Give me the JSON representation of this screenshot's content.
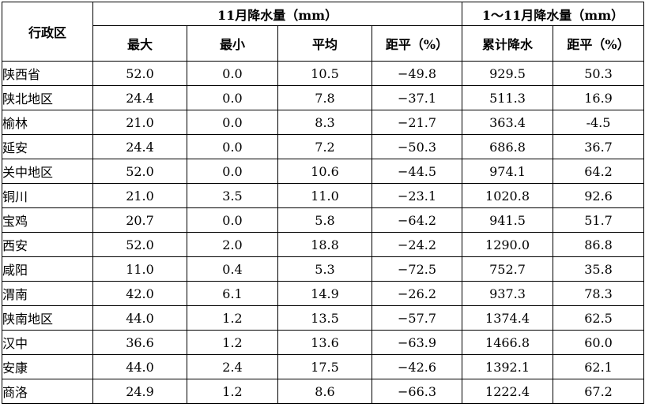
{
  "header": {
    "region_label": "行政区",
    "group_november": "11月降水量（mm）",
    "group_cumulative": "1～11月降水量（mm）",
    "columns": [
      "最大",
      "最小",
      "平均",
      "距平（%）",
      "累计降水",
      "距平（%）"
    ]
  },
  "rows": [
    {
      "region": "陕西省",
      "values": [
        "52.0",
        "0.0",
        "10.5",
        "−49.8",
        "929.5",
        "50.3"
      ]
    },
    {
      "region": "陕北地区",
      "values": [
        "24.4",
        "0.0",
        "7.8",
        "−37.1",
        "511.3",
        "16.9"
      ]
    },
    {
      "region": "榆林",
      "values": [
        "21.0",
        "0.0",
        "8.3",
        "−21.7",
        "363.4",
        "-4.5"
      ]
    },
    {
      "region": "延安",
      "values": [
        "24.4",
        "0.0",
        "7.2",
        "−50.3",
        "686.8",
        "36.7"
      ]
    },
    {
      "region": "关中地区",
      "values": [
        "52.0",
        "0.0",
        "10.6",
        "−44.5",
        "974.1",
        "64.2"
      ]
    },
    {
      "region": "铜川",
      "values": [
        "21.0",
        "3.5",
        "11.0",
        "−23.1",
        "1020.8",
        "92.6"
      ]
    },
    {
      "region": "宝鸡",
      "values": [
        "20.7",
        "0.0",
        "5.8",
        "−64.2",
        "941.5",
        "51.7"
      ]
    },
    {
      "region": "西安",
      "values": [
        "52.0",
        "2.0",
        "18.8",
        "−24.2",
        "1290.0",
        "86.8"
      ]
    },
    {
      "region": "咸阳",
      "values": [
        "11.0",
        "0.4",
        "5.3",
        "−72.5",
        "752.7",
        "35.8"
      ]
    },
    {
      "region": "渭南",
      "values": [
        "42.0",
        "6.1",
        "14.9",
        "−26.2",
        "937.3",
        "78.3"
      ]
    },
    {
      "region": "陕南地区",
      "values": [
        "44.0",
        "1.2",
        "13.5",
        "−57.7",
        "1374.4",
        "62.5"
      ]
    },
    {
      "region": "汉中",
      "values": [
        "36.6",
        "1.2",
        "13.6",
        "−63.9",
        "1466.8",
        "60.0"
      ]
    },
    {
      "region": "安康",
      "values": [
        "44.0",
        "2.4",
        "17.5",
        "−42.6",
        "1392.1",
        "62.1"
      ]
    },
    {
      "region": "商洛",
      "values": [
        "24.9",
        "1.2",
        "8.6",
        "−66.3",
        "1222.4",
        "67.2"
      ]
    }
  ]
}
